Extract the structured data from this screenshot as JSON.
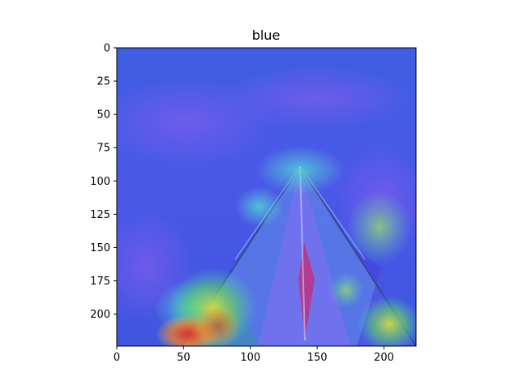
{
  "chart_data": {
    "type": "heatmap",
    "title": "blue",
    "xlabel": "",
    "ylabel": "",
    "xlim": [
      0,
      224
    ],
    "ylim": [
      224,
      0
    ],
    "x_ticks": [
      0,
      50,
      100,
      150,
      200
    ],
    "y_ticks": [
      0,
      25,
      50,
      75,
      100,
      125,
      150,
      175,
      200
    ],
    "x_tick_labels": [
      "0",
      "50",
      "100",
      "150",
      "200"
    ],
    "y_tick_labels": [
      "0",
      "25",
      "50",
      "75",
      "100",
      "125",
      "150",
      "175",
      "200"
    ],
    "grid": false,
    "colormap": "jet (overlay on image)",
    "background_color": "#3d5ee0",
    "description_hotspots": [
      {
        "x": 50,
        "y": 215,
        "value": "high"
      },
      {
        "x": 75,
        "y": 200,
        "value": "medium"
      },
      {
        "x": 138,
        "y": 95,
        "value": "low"
      },
      {
        "x": 195,
        "y": 140,
        "value": "medium"
      }
    ]
  }
}
